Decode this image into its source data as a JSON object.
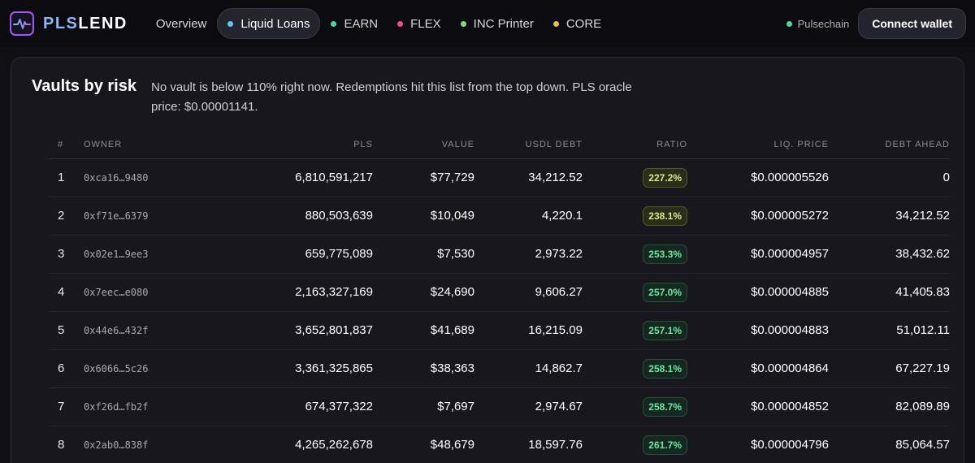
{
  "brand": {
    "name_part1": "PLS",
    "name_part2": "LEND"
  },
  "nav": [
    {
      "label": "Overview",
      "dot_color": null,
      "active": false
    },
    {
      "label": "Liquid Loans",
      "dot_color": "#5ec8f0",
      "active": true
    },
    {
      "label": "EARN",
      "dot_color": "#4fd6a0",
      "active": false
    },
    {
      "label": "FLEX",
      "dot_color": "#f0508a",
      "active": false
    },
    {
      "label": "INC Printer",
      "dot_color": "#7ee07a",
      "active": false
    },
    {
      "label": "CORE",
      "dot_color": "#f0b850",
      "active": false
    }
  ],
  "network": {
    "label": "Pulsechain",
    "dot_color": "#4fd6a0"
  },
  "connect_label": "Connect wallet",
  "panel": {
    "title": "Vaults by risk",
    "description": "No vault is below 110% right now. Redemptions hit this list from the top down. PLS oracle price: $0.00001141."
  },
  "table": {
    "headers": [
      "#",
      "OWNER",
      "PLS",
      "VALUE",
      "USDL DEBT",
      "RATIO",
      "LIQ. PRICE",
      "DEBT AHEAD"
    ],
    "rows": [
      {
        "num": "1",
        "owner": "0xca16…9480",
        "pls": "6,810,591,217",
        "value": "$77,729",
        "debt": "34,212.52",
        "ratio": "227.2%",
        "level": "warn",
        "liq": "$0.000005526",
        "ahead": "0"
      },
      {
        "num": "2",
        "owner": "0xf71e…6379",
        "pls": "880,503,639",
        "value": "$10,049",
        "debt": "4,220.1",
        "ratio": "238.1%",
        "level": "warn",
        "liq": "$0.000005272",
        "ahead": "34,212.52"
      },
      {
        "num": "3",
        "owner": "0x02e1…9ee3",
        "pls": "659,775,089",
        "value": "$7,530",
        "debt": "2,973.22",
        "ratio": "253.3%",
        "level": "ok",
        "liq": "$0.000004957",
        "ahead": "38,432.62"
      },
      {
        "num": "4",
        "owner": "0x7eec…e080",
        "pls": "2,163,327,169",
        "value": "$24,690",
        "debt": "9,606.27",
        "ratio": "257.0%",
        "level": "ok",
        "liq": "$0.000004885",
        "ahead": "41,405.83"
      },
      {
        "num": "5",
        "owner": "0x44e6…432f",
        "pls": "3,652,801,837",
        "value": "$41,689",
        "debt": "16,215.09",
        "ratio": "257.1%",
        "level": "ok",
        "liq": "$0.000004883",
        "ahead": "51,012.11"
      },
      {
        "num": "6",
        "owner": "0x6066…5c26",
        "pls": "3,361,325,865",
        "value": "$38,363",
        "debt": "14,862.7",
        "ratio": "258.1%",
        "level": "ok",
        "liq": "$0.000004864",
        "ahead": "67,227.19"
      },
      {
        "num": "7",
        "owner": "0xf26d…fb2f",
        "pls": "674,377,322",
        "value": "$7,697",
        "debt": "2,974.67",
        "ratio": "258.7%",
        "level": "ok",
        "liq": "$0.000004852",
        "ahead": "82,089.89"
      },
      {
        "num": "8",
        "owner": "0x2ab0…838f",
        "pls": "4,265,262,678",
        "value": "$48,679",
        "debt": "18,597.76",
        "ratio": "261.7%",
        "level": "ok",
        "liq": "$0.000004796",
        "ahead": "85,064.57"
      }
    ]
  }
}
